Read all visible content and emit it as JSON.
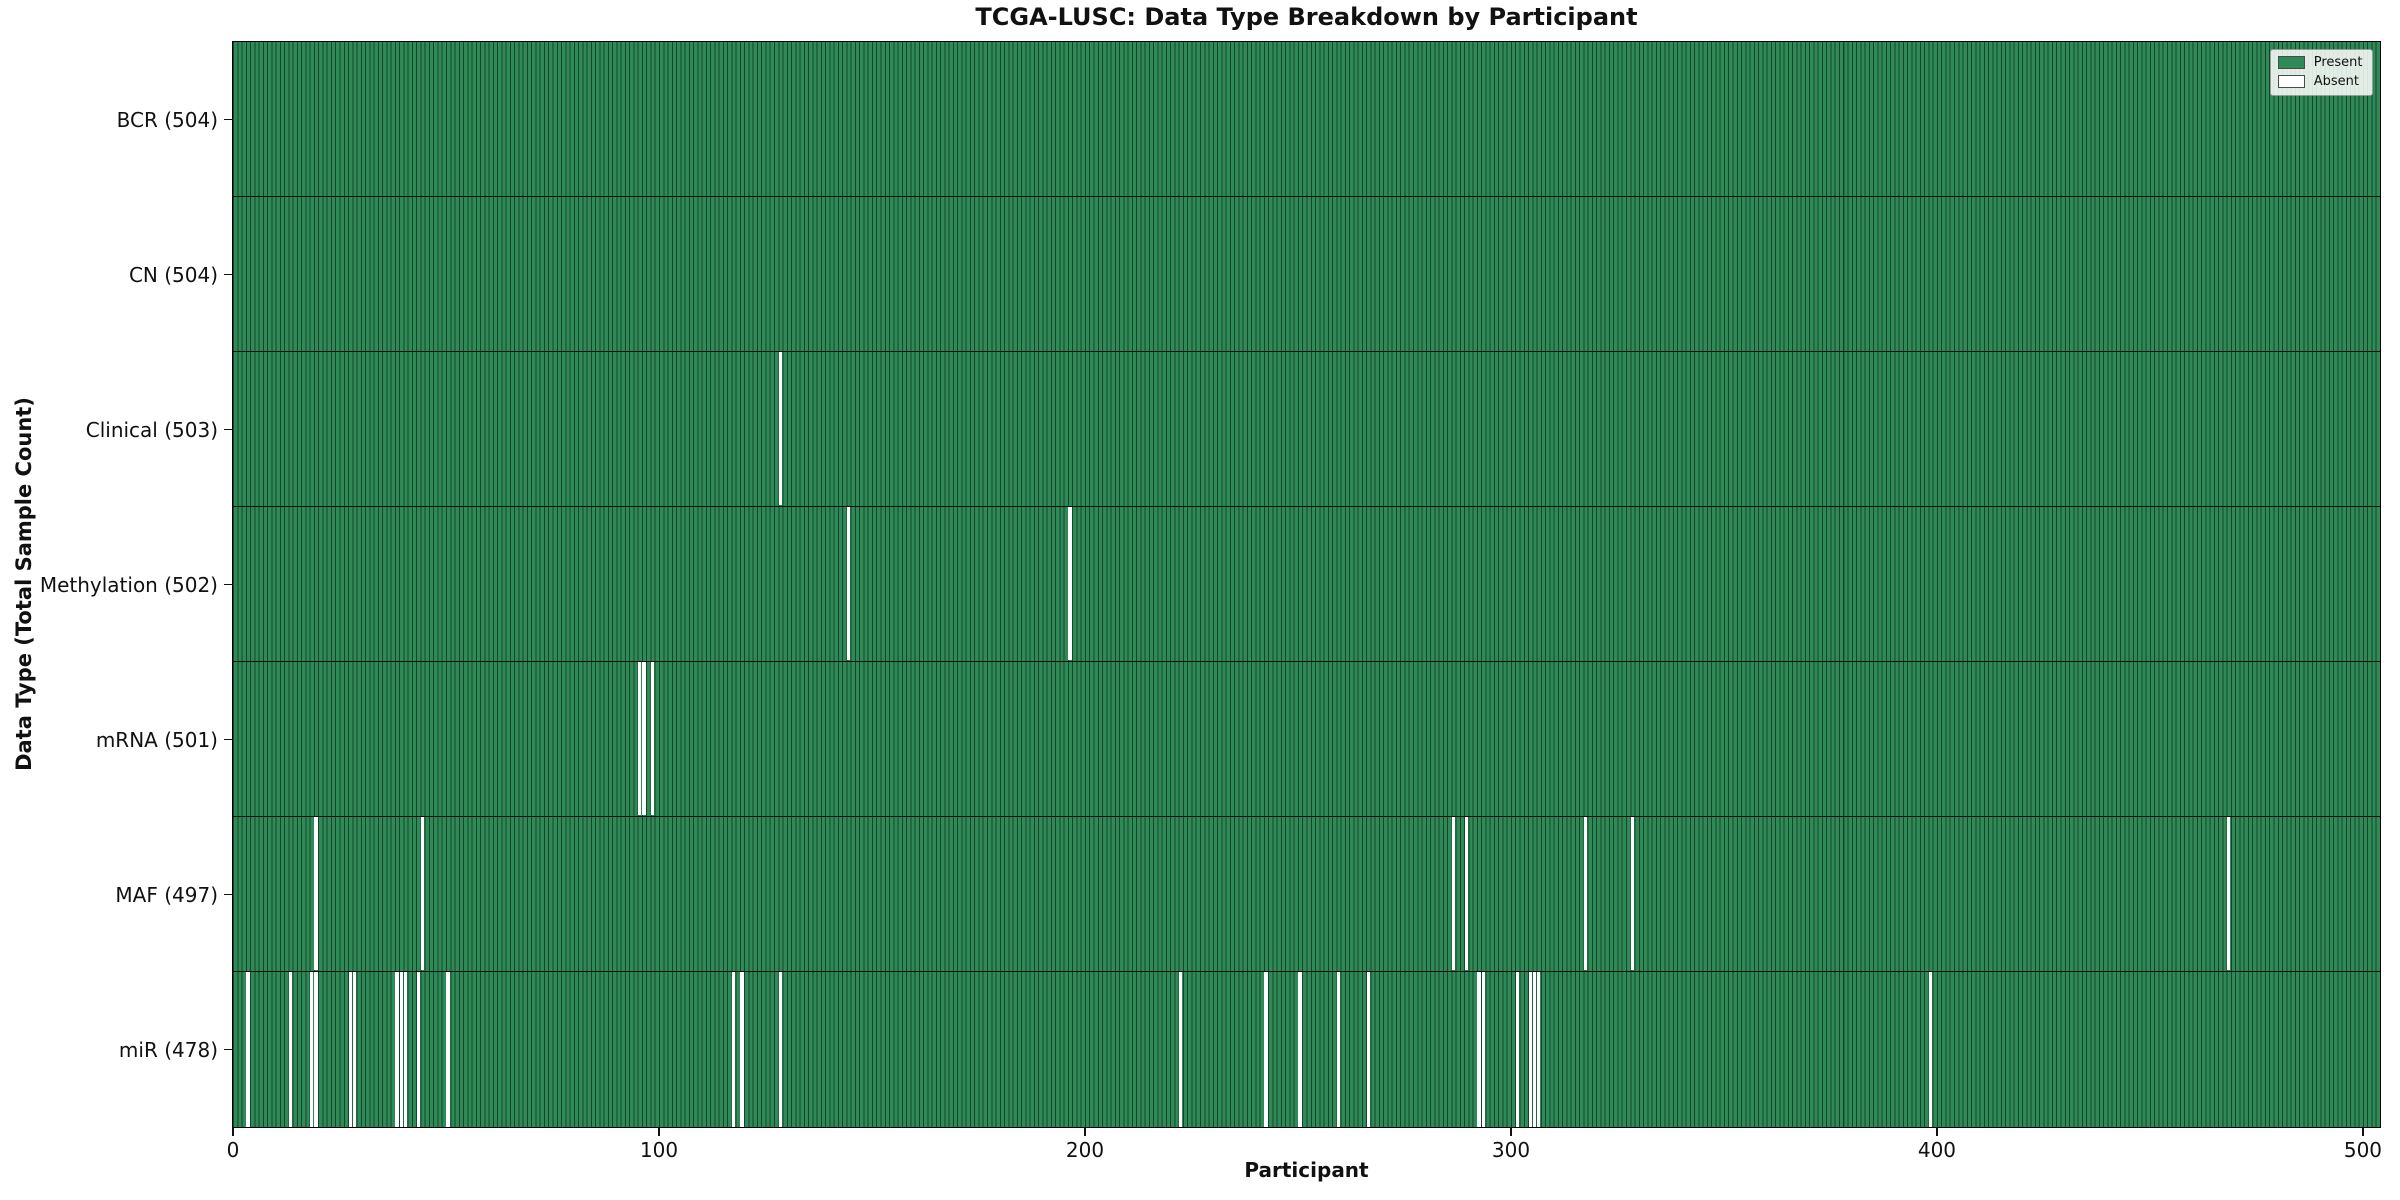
{
  "chart_data": {
    "type": "heatmap",
    "title": "TCGA-LUSC: Data Type Breakdown by Participant",
    "xlabel": "Participant",
    "ylabel": "Data Type (Total Sample Count)",
    "x_ticks": [
      0,
      100,
      200,
      300,
      400,
      500
    ],
    "xlim": [
      0,
      504
    ],
    "n_participants": 504,
    "grid": false,
    "colors": {
      "present": "#2e8b57",
      "absent": "#ffffff",
      "bar_edge": "#16442b",
      "row_divider": "#0d0d0d"
    },
    "legend": {
      "position": "upper right",
      "items": [
        {
          "label": "Present",
          "color": "#2e8b57"
        },
        {
          "label": "Absent",
          "color": "#ffffff"
        }
      ]
    },
    "rows": [
      {
        "label": "BCR (504)",
        "data_type": "bcr",
        "total": 504,
        "absent_participants": []
      },
      {
        "label": "CN (504)",
        "data_type": "cn",
        "total": 504,
        "absent_participants": []
      },
      {
        "label": "Clinical (503)",
        "data_type": "clinical",
        "total": 503,
        "absent_participants": [
          128
        ]
      },
      {
        "label": "Methylation (502)",
        "data_type": "methylation",
        "total": 502,
        "absent_participants": [
          144,
          196
        ]
      },
      {
        "label": "mRNA (501)",
        "data_type": "mrna",
        "total": 501,
        "absent_participants": [
          95,
          96,
          98
        ]
      },
      {
        "label": "MAF (497)",
        "data_type": "maf",
        "total": 497,
        "absent_participants": [
          19,
          44,
          286,
          289,
          317,
          328,
          468
        ]
      },
      {
        "label": "miR (478)",
        "data_type": "mir",
        "total": 478,
        "absent_participants": [
          3,
          13,
          18,
          19,
          27,
          28,
          38,
          39,
          40,
          43,
          50,
          117,
          119,
          128,
          222,
          242,
          250,
          259,
          266,
          292,
          293,
          301,
          304,
          305,
          306,
          398
        ]
      }
    ]
  }
}
